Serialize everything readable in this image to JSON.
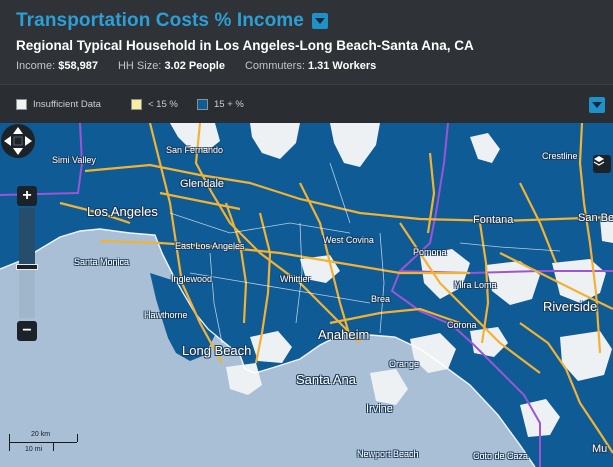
{
  "header": {
    "title": "Transportation Costs % Income",
    "subtitle": "Regional Typical Household in Los Angeles-Long Beach-Santa Ana, CA",
    "income_label": "Income:",
    "income_value": "$58,987",
    "hh_label": "HH Size:",
    "hh_value": "3.02 People",
    "commuters_label": "Commuters:",
    "commuters_value": "1.31 Workers"
  },
  "legend": {
    "items": [
      {
        "label": "Insufficient Data",
        "color": "#f2f2f2"
      },
      {
        "label": "< 15 %",
        "color": "#f5f0a0"
      },
      {
        "label": "15 + %",
        "color": "#0e5b96"
      }
    ]
  },
  "map": {
    "colors": {
      "water": "#a8bfd6",
      "high_cost": "#0e5b96",
      "insufficient": "#eef1f3",
      "highway": "#f2b233",
      "boundary": "#9b55d6"
    },
    "labels": {
      "simi_valley": "Simi Valley",
      "san_fernando": "San Fernando",
      "glendale": "Glendale",
      "los_angeles": "Los Angeles",
      "east_los_angeles": "East Los Angeles",
      "west_covina": "West Covina",
      "pomona": "Pomona",
      "fontana": "Fontana",
      "san_bern": "San Ben",
      "crestline": "Crestline",
      "santa_monica": "Santa Monica",
      "inglewood": "Inglewood",
      "whittier": "Whittier",
      "mira_loma": "Mira Loma",
      "riverside": "Riverside",
      "brea": "Brea",
      "hawthorne": "Hawthorne",
      "anaheim": "Anaheim",
      "corona": "Corona",
      "long_beach": "Long Beach",
      "orange": "Orange",
      "santa_ana": "Santa Ana",
      "irvine": "Irvine",
      "newport_beach": "Newport Beach",
      "coto_de_caza": "Coto de Caza",
      "mu": "Mu"
    },
    "scale": {
      "km": "20 km",
      "mi": "10 mi"
    },
    "zoom_in": "+",
    "zoom_out": "−"
  }
}
